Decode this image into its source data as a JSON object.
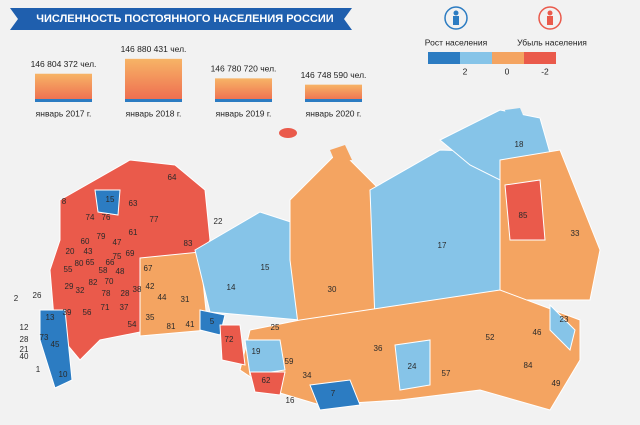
{
  "title": "ЧИСЛЕННОСТЬ ПОСТОЯННОГО НАСЕЛЕНИЯ РОССИИ",
  "legend": {
    "growth": "Рост населения",
    "decline": "Убыль населения",
    "scale_ticks": [
      2,
      0,
      -2
    ],
    "colors": [
      "#2c7cc2",
      "#86c4e8",
      "#f4a461",
      "#ea5a4b"
    ]
  },
  "chart_data": {
    "type": "bar",
    "categories": [
      "январь 2017 г.",
      "январь 2018 г.",
      "январь 2019 г.",
      "январь 2020 г."
    ],
    "values": [
      146804372,
      146880431,
      146780720,
      146748590
    ],
    "value_labels": [
      "146 804 372 чел.",
      "146 880 431 чел.",
      "146 780 720 чел.",
      "146 748 590 чел."
    ],
    "ylim": [
      146660000,
      146900000
    ]
  },
  "regions": [
    "64",
    "63",
    "15",
    "77",
    "74",
    "76",
    "83",
    "61",
    "22",
    "60",
    "79",
    "47",
    "20",
    "43",
    "80",
    "75",
    "69",
    "55",
    "58",
    "67",
    "48",
    "65",
    "66",
    "70",
    "32",
    "82",
    "29",
    "78",
    "28",
    "38",
    "42",
    "71",
    "37",
    "56",
    "39",
    "54",
    "35",
    "31",
    "44",
    "15",
    "14",
    "30",
    "17",
    "18",
    "85",
    "33",
    "5",
    "81",
    "41",
    "72",
    "25",
    "19",
    "59",
    "62",
    "34",
    "16",
    "7",
    "36",
    "24",
    "57",
    "52",
    "46",
    "23",
    "84",
    "49",
    "13",
    "12",
    "28",
    "21",
    "40",
    "1",
    "10",
    "45",
    "73",
    "26",
    "2",
    "8"
  ]
}
